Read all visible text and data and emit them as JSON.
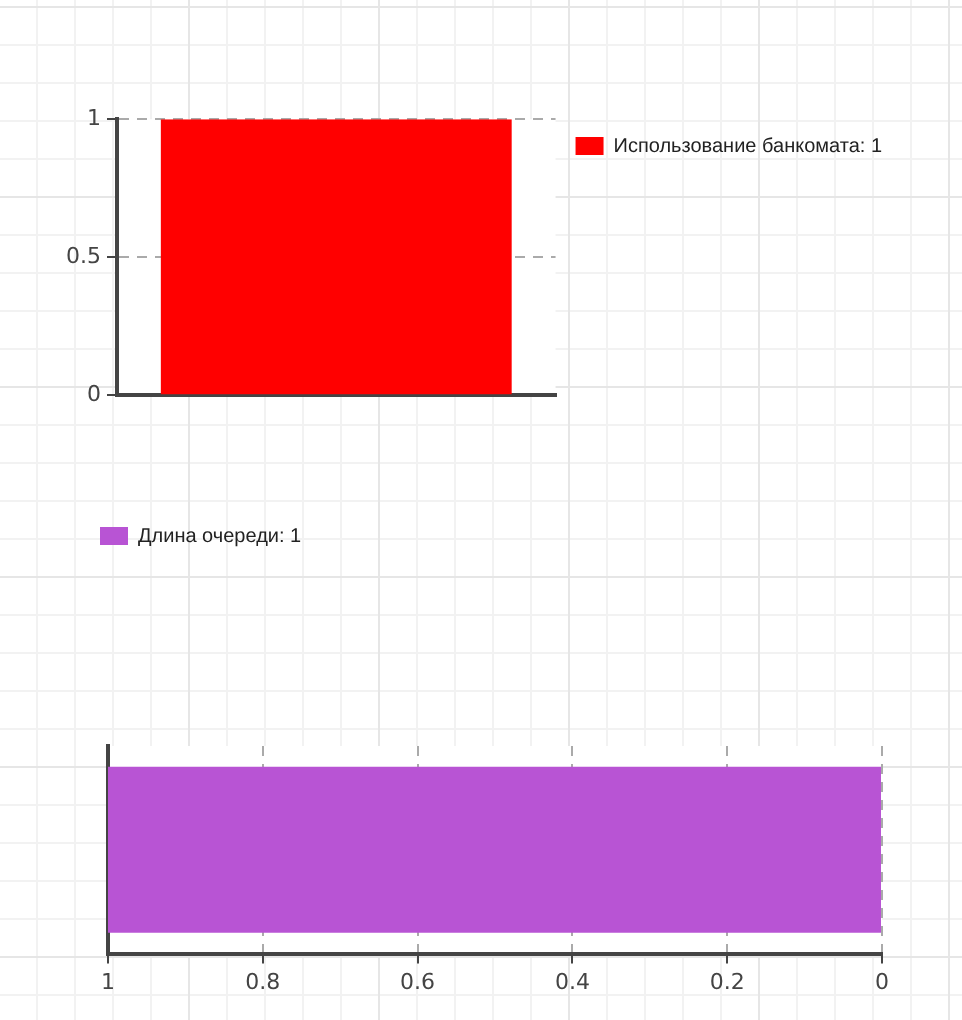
{
  "chart_data": [
    {
      "type": "bar",
      "categories": [
        null
      ],
      "series": [
        {
          "name": "Использование банкомата: 1",
          "color": "#ff0000",
          "values": [
            1
          ]
        }
      ],
      "ylim": [
        0,
        1
      ],
      "yticks": [
        0,
        0.5,
        1
      ],
      "grid": "y",
      "line_style": "dashed",
      "legend": "right"
    },
    {
      "type": "bar",
      "orientation": "horizontal",
      "categories": [
        null
      ],
      "series": [
        {
          "name": "Длина очереди: 1",
          "color": "#b854d4",
          "values": [
            1
          ]
        }
      ],
      "xlim": [
        1,
        0
      ],
      "xticks": [
        1,
        0.8,
        0.6,
        0.4,
        0.2,
        0
      ],
      "grid": "x",
      "line_style": "dashed",
      "legend": "top left"
    }
  ]
}
